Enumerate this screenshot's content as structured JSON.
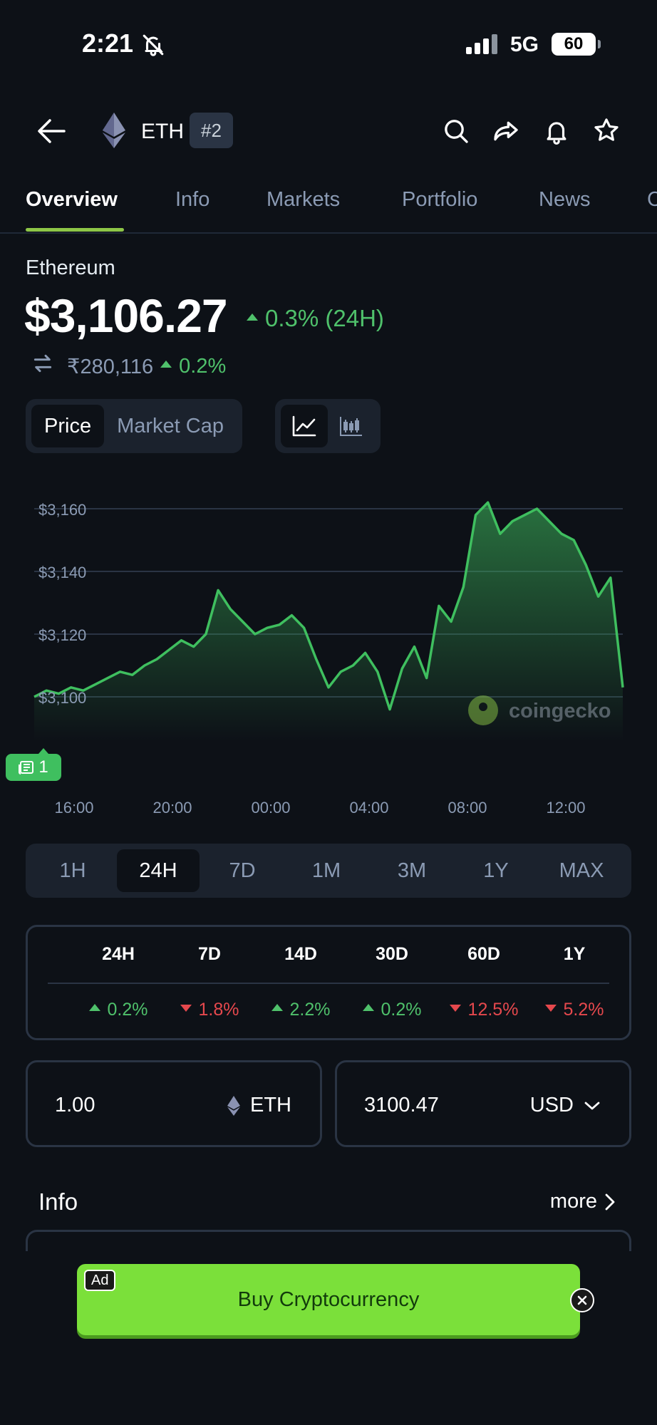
{
  "status_bar": {
    "time": "2:21",
    "network": "5G",
    "battery": "60"
  },
  "header": {
    "symbol": "ETH",
    "rank": "#2"
  },
  "tabs": [
    {
      "label": "Overview"
    },
    {
      "label": "Info"
    },
    {
      "label": "Markets"
    },
    {
      "label": "Portfolio"
    },
    {
      "label": "News"
    },
    {
      "label": "C"
    }
  ],
  "coin": {
    "name": "Ethereum",
    "price": "$3,106.27",
    "change_24h": "0.3% (24H)",
    "inr_price": "₹280,116",
    "inr_change": "0.2%"
  },
  "chart_toggle": {
    "price": "Price",
    "market_cap": "Market Cap"
  },
  "chart_data": {
    "type": "line",
    "xlabel": "",
    "ylabel": "",
    "x_tick_labels": [
      "16:00",
      "20:00",
      "00:00",
      "04:00",
      "08:00",
      "12:00"
    ],
    "y_tick_labels": [
      "$3,160",
      "$3,140",
      "$3,120",
      "$3,100"
    ],
    "y_ticks": [
      3160,
      3140,
      3120,
      3100
    ],
    "ylim": [
      3090,
      3165
    ],
    "x_hours": [
      0,
      0.5,
      1,
      1.5,
      2,
      2.5,
      3,
      3.5,
      4,
      4.5,
      5,
      5.5,
      6,
      6.5,
      7,
      7.5,
      8,
      8.5,
      9,
      9.5,
      10,
      10.5,
      11,
      11.5,
      12,
      12.5,
      13,
      13.5,
      14,
      14.5,
      15,
      15.5,
      16,
      16.5,
      17,
      17.5,
      18,
      18.5,
      19,
      19.5,
      20,
      20.5,
      21,
      21.5,
      22,
      22.5,
      23,
      23.5,
      24
    ],
    "values": [
      3100,
      3102,
      3101,
      3103,
      3102,
      3104,
      3106,
      3108,
      3107,
      3110,
      3112,
      3115,
      3118,
      3116,
      3120,
      3134,
      3128,
      3124,
      3120,
      3122,
      3123,
      3126,
      3122,
      3112,
      3103,
      3108,
      3110,
      3114,
      3108,
      3096,
      3109,
      3116,
      3106,
      3129,
      3124,
      3135,
      3158,
      3162,
      3152,
      3156,
      3158,
      3160,
      3156,
      3152,
      3150,
      3142,
      3132,
      3138,
      3103
    ],
    "series_color": "#3fbf5f",
    "watermark": "coingecko"
  },
  "news_badge": {
    "count": "1"
  },
  "ranges": [
    "1H",
    "24H",
    "7D",
    "1M",
    "3M",
    "1Y",
    "MAX"
  ],
  "performance": {
    "headers": [
      "24H",
      "7D",
      "14D",
      "30D",
      "60D",
      "1Y"
    ],
    "values": [
      "0.2%",
      "1.8%",
      "2.2%",
      "0.2%",
      "12.5%",
      "5.2%"
    ],
    "directions": [
      "up",
      "down",
      "up",
      "up",
      "down",
      "down"
    ]
  },
  "converter": {
    "amount": "1.00",
    "from_unit": "ETH",
    "result": "3100.47",
    "to_unit": "USD"
  },
  "info_section": {
    "title": "Info",
    "more": "more"
  },
  "ad": {
    "tag": "Ad",
    "text": "Buy Cryptocurrency"
  },
  "colors": {
    "accent": "#8dc647",
    "up": "#4fc16b",
    "down": "#e5484d",
    "background": "#0d1117"
  }
}
